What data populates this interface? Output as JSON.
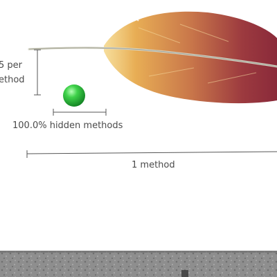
{
  "labels": {
    "y_axis_line1": "5 per",
    "y_axis_line2": "ethod",
    "hidden_methods": "100.0% hidden methods",
    "x_axis": "1 method"
  },
  "colors": {
    "feather_tip": "#8c2a3a",
    "feather_mid": "#c06048",
    "feather_base": "#e6b05a",
    "quill": "#d6d6c8",
    "dot": "#22bb33",
    "rule": "#555555",
    "text": "#4a4a4a",
    "stone": "#8a8a8a"
  },
  "icons": {
    "feather": "feather-illustration",
    "dot": "green-sphere-icon"
  }
}
